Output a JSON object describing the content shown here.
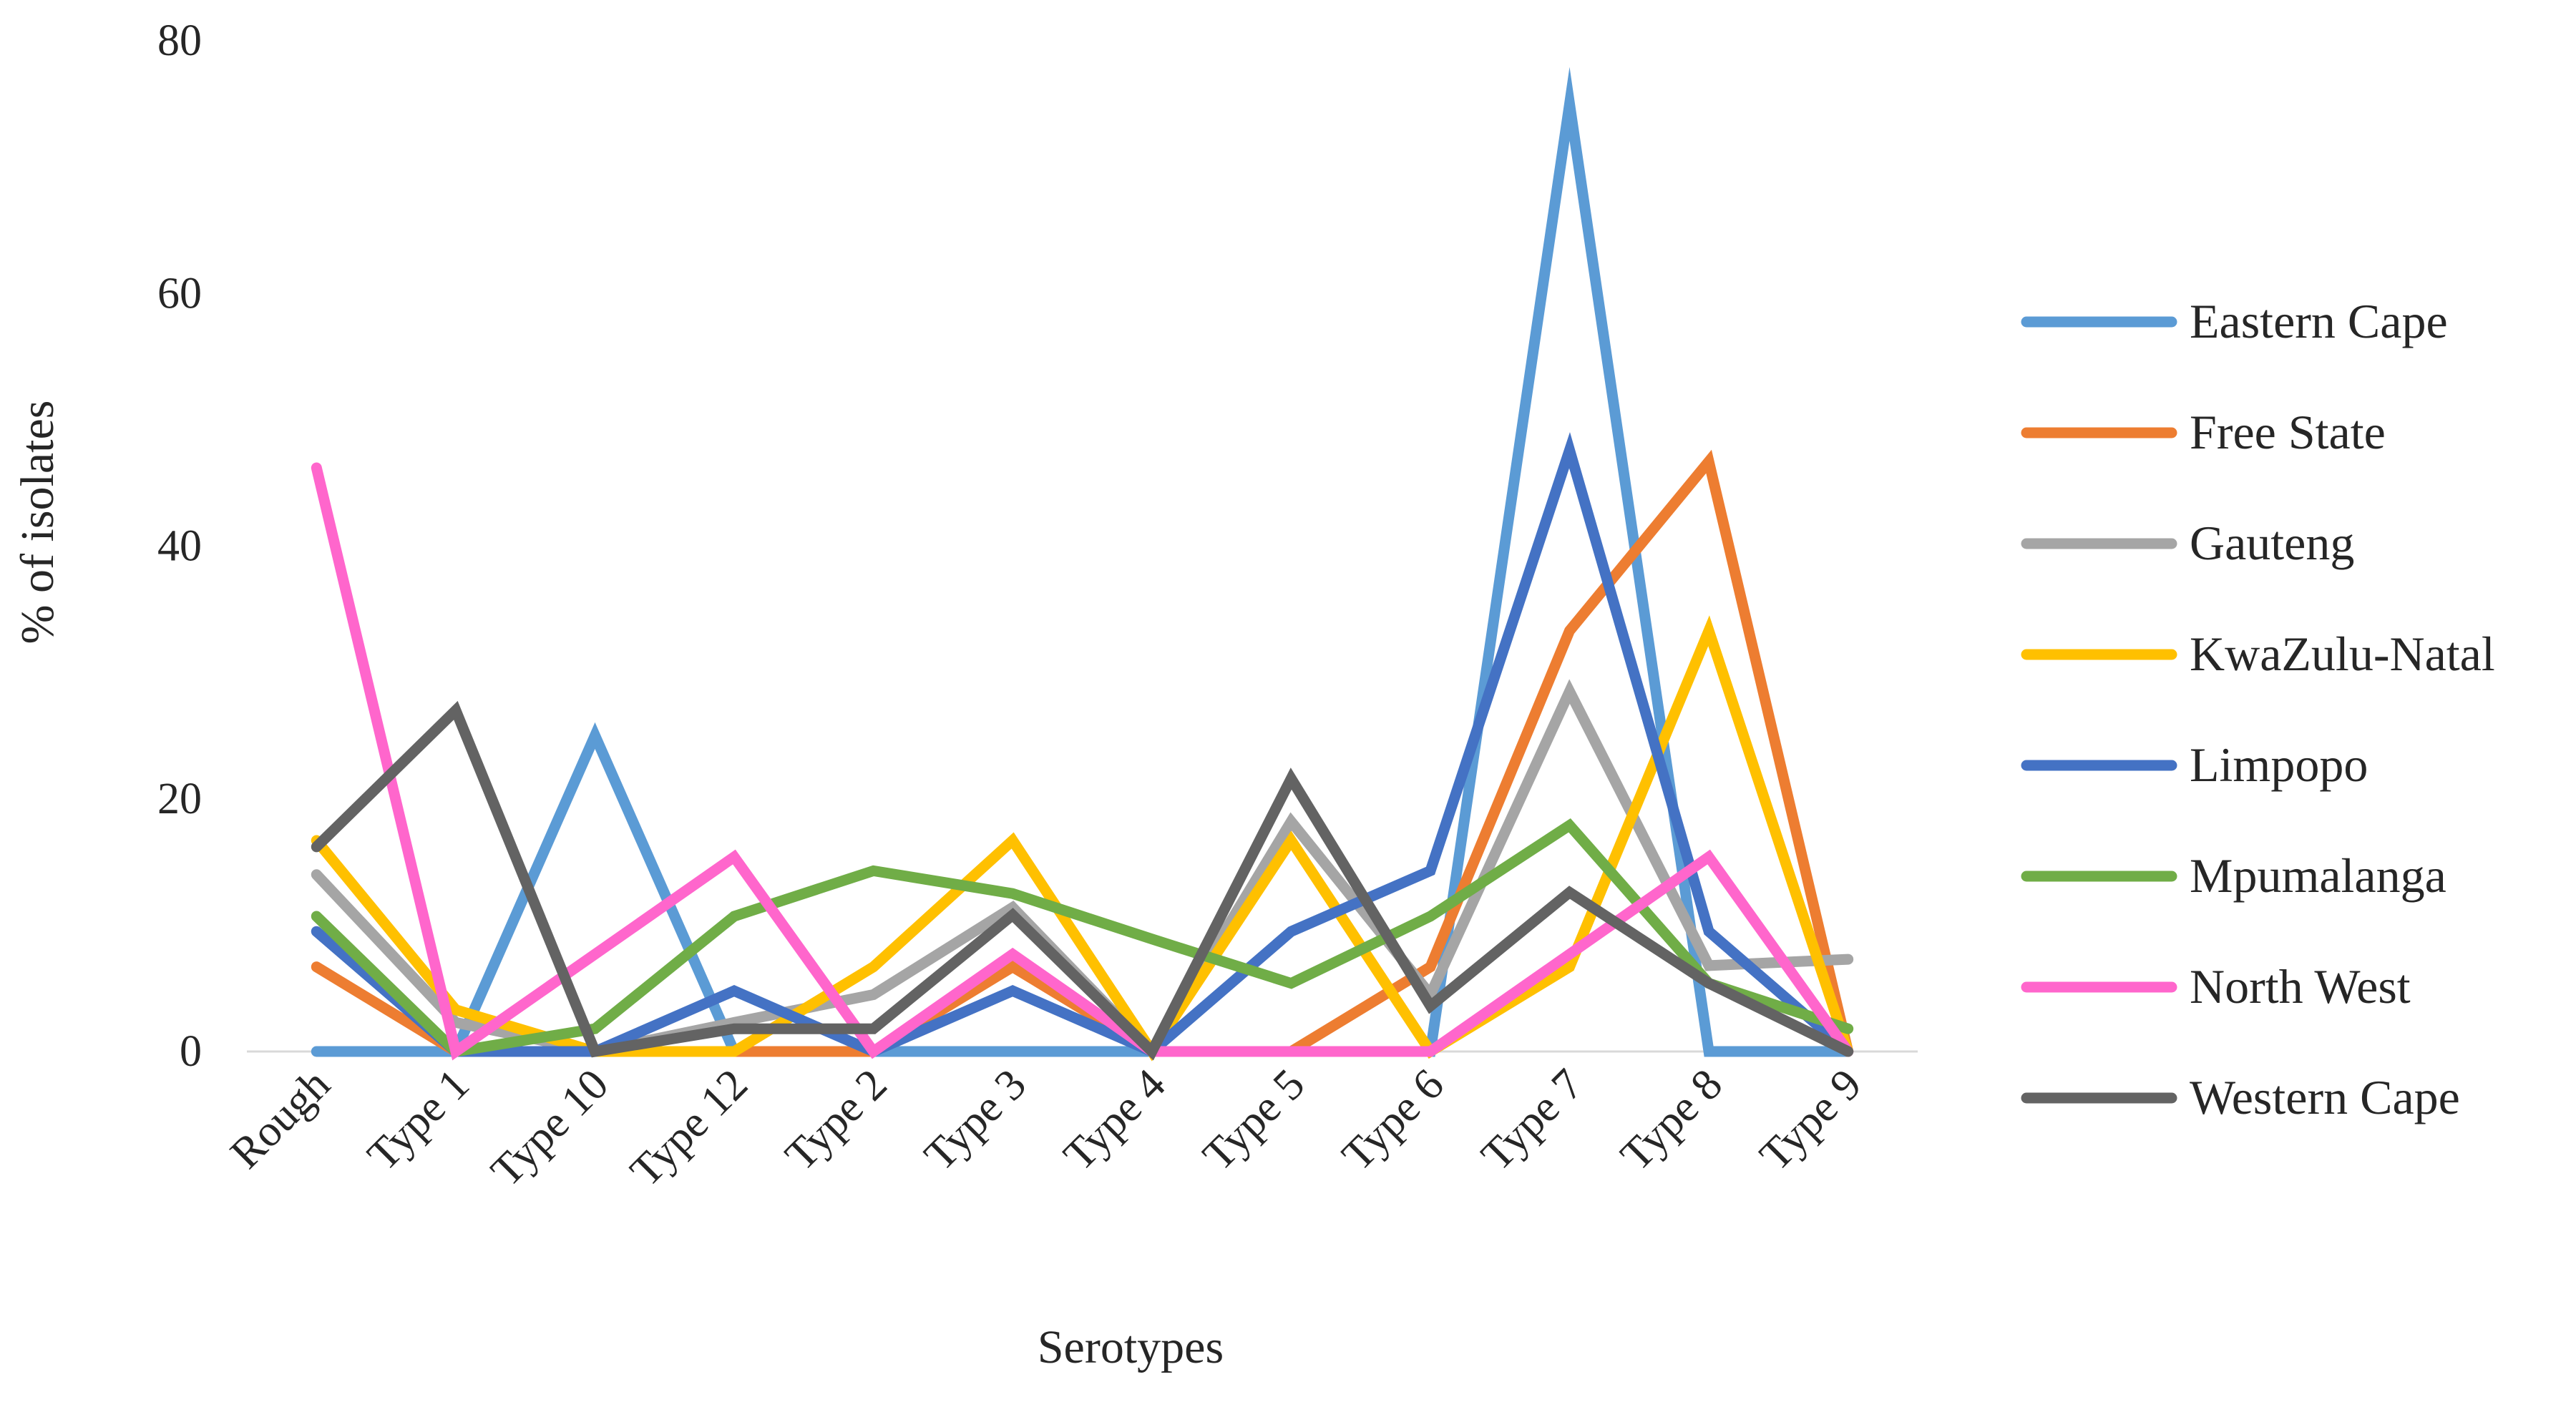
{
  "chart_data": {
    "type": "line",
    "title": "",
    "xlabel": "Serotypes",
    "ylabel": "% of isolates",
    "ylim": [
      0,
      80
    ],
    "yticks": [
      0,
      20,
      40,
      60,
      80
    ],
    "grid": false,
    "legend_position": "right",
    "categories": [
      "Rough",
      "Type 1",
      "Type 10",
      "Type 12",
      "Type 2",
      "Type 3",
      "Type 4",
      "Type 5",
      "Type 6",
      "Type 7",
      "Type 8",
      "Type 9"
    ],
    "series": [
      {
        "name": "Eastern Cape",
        "color": "#5B9BD5",
        "values": [
          0,
          0,
          25,
          0,
          0,
          0,
          0,
          0,
          0,
          75,
          0,
          0
        ]
      },
      {
        "name": "Free State",
        "color": "#ED7D31",
        "values": [
          6.7,
          0,
          0,
          0,
          0,
          6.7,
          0,
          0,
          6.7,
          33.3,
          46.7,
          0
        ]
      },
      {
        "name": "Gauteng",
        "color": "#A5A5A5",
        "values": [
          14,
          2.3,
          0,
          2.3,
          4.5,
          11.4,
          0,
          18.2,
          4.5,
          28.5,
          6.8,
          7.3
        ]
      },
      {
        "name": "KwaZulu-Natal",
        "color": "#FFC000",
        "values": [
          16.7,
          3.3,
          0,
          0,
          6.7,
          16.7,
          0,
          16.7,
          0,
          6.7,
          33.3,
          0
        ]
      },
      {
        "name": "Limpopo",
        "color": "#4472C4",
        "values": [
          9.5,
          0,
          0,
          4.8,
          0,
          4.8,
          0,
          9.5,
          14.3,
          47.6,
          9.5,
          0
        ]
      },
      {
        "name": "Mpumalanga",
        "color": "#70AD47",
        "values": [
          10.7,
          0,
          1.8,
          10.7,
          14.3,
          12.5,
          8.9,
          5.4,
          10.7,
          17.9,
          5.4,
          1.8
        ]
      },
      {
        "name": "North West",
        "color": "#FF66CC",
        "values": [
          46.2,
          0,
          7.7,
          15.4,
          0,
          7.7,
          0,
          0,
          0,
          7.7,
          15.4,
          0
        ]
      },
      {
        "name": "Western Cape",
        "color": "#636363",
        "values": [
          16.2,
          27,
          0,
          1.8,
          1.8,
          10.8,
          0,
          21.6,
          3.6,
          12.6,
          5.4,
          0
        ]
      }
    ]
  }
}
